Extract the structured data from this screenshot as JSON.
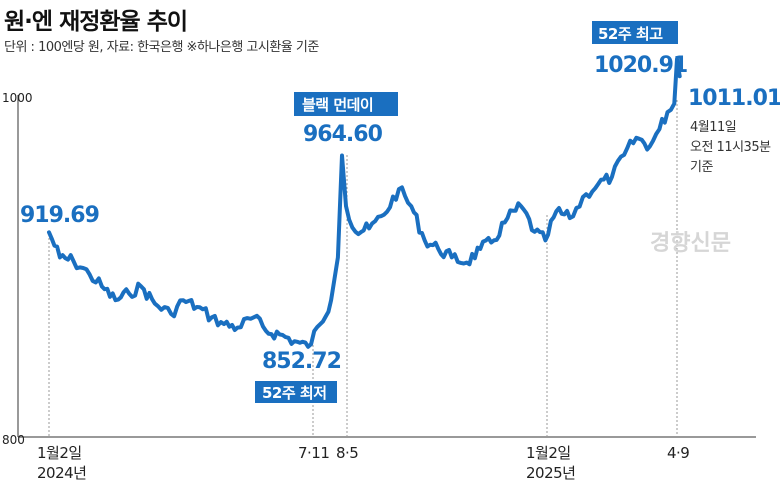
{
  "title": "원·엔 재정환율 추이",
  "subtitle": "단위 : 100엔당 원, 자료: 한국은행 ※하나은행 고시환율 기준",
  "watermark": "경향신문",
  "colors": {
    "line": "#1a6fc0",
    "tag_bg": "#1a6fc0",
    "dash": "#999999"
  },
  "chart_data": {
    "type": "line",
    "title": "원·엔 재정환율 추이",
    "unit": "100엔당 원",
    "ylim": [
      800,
      1040
    ],
    "y_ticks": [
      "1000",
      "800"
    ],
    "x_ticks": [
      "1월2일",
      "2024년",
      "7·11",
      "8·5",
      "1월2일",
      "2025년",
      "4·9"
    ],
    "series": [
      {
        "x": [
          "2024-01-02",
          "2024-01-10",
          "2024-01-20",
          "2024-02-01",
          "2024-02-10",
          "2024-02-20",
          "2024-03-01",
          "2024-03-10",
          "2024-03-20",
          "2024-04-01",
          "2024-04-10",
          "2024-04-20",
          "2024-05-01",
          "2024-05-10",
          "2024-05-20",
          "2024-06-01",
          "2024-06-10",
          "2024-06-20",
          "2024-07-01",
          "2024-07-11",
          "2024-07-20",
          "2024-07-28",
          "2024-08-02",
          "2024-08-05",
          "2024-08-08",
          "2024-08-15",
          "2024-08-25",
          "2024-09-05",
          "2024-09-16",
          "2024-09-25",
          "2024-10-05",
          "2024-10-15",
          "2024-10-25",
          "2024-11-05",
          "2024-11-15",
          "2024-11-25",
          "2024-12-05",
          "2024-12-15",
          "2024-12-25",
          "2025-01-02",
          "2025-01-10",
          "2025-01-20",
          "2025-02-01",
          "2025-02-10",
          "2025-02-20",
          "2025-03-01",
          "2025-03-10",
          "2025-03-20",
          "2025-03-27",
          "2025-04-02",
          "2025-04-07",
          "2025-04-09",
          "2025-04-11"
        ],
        "values": [
          919.69,
          905,
          903,
          895,
          888,
          880,
          884,
          888,
          878,
          872,
          880,
          876,
          870,
          866,
          864,
          870,
          862,
          860,
          856,
          852.72,
          866,
          880,
          905,
          964.6,
          935,
          920,
          922,
          930,
          945,
          935,
          915,
          910,
          905,
          902,
          910,
          915,
          928,
          935,
          920,
          915,
          932,
          928,
          942,
          948,
          952,
          965,
          975,
          970,
          980,
          990,
          995,
          1020.91,
          1011.01
        ]
      }
    ],
    "annotations": {
      "start": {
        "label": "919.69"
      },
      "low": {
        "value": "852.72",
        "tag": "52주 최저"
      },
      "black_monday": {
        "value": "964.60",
        "tag": "블랙 먼데이"
      },
      "high": {
        "value": "1020.91",
        "tag": "52주 최고"
      },
      "latest": {
        "value": "1011.01",
        "note": [
          "4월11일",
          "오전 11시35분",
          "기준"
        ]
      }
    }
  }
}
